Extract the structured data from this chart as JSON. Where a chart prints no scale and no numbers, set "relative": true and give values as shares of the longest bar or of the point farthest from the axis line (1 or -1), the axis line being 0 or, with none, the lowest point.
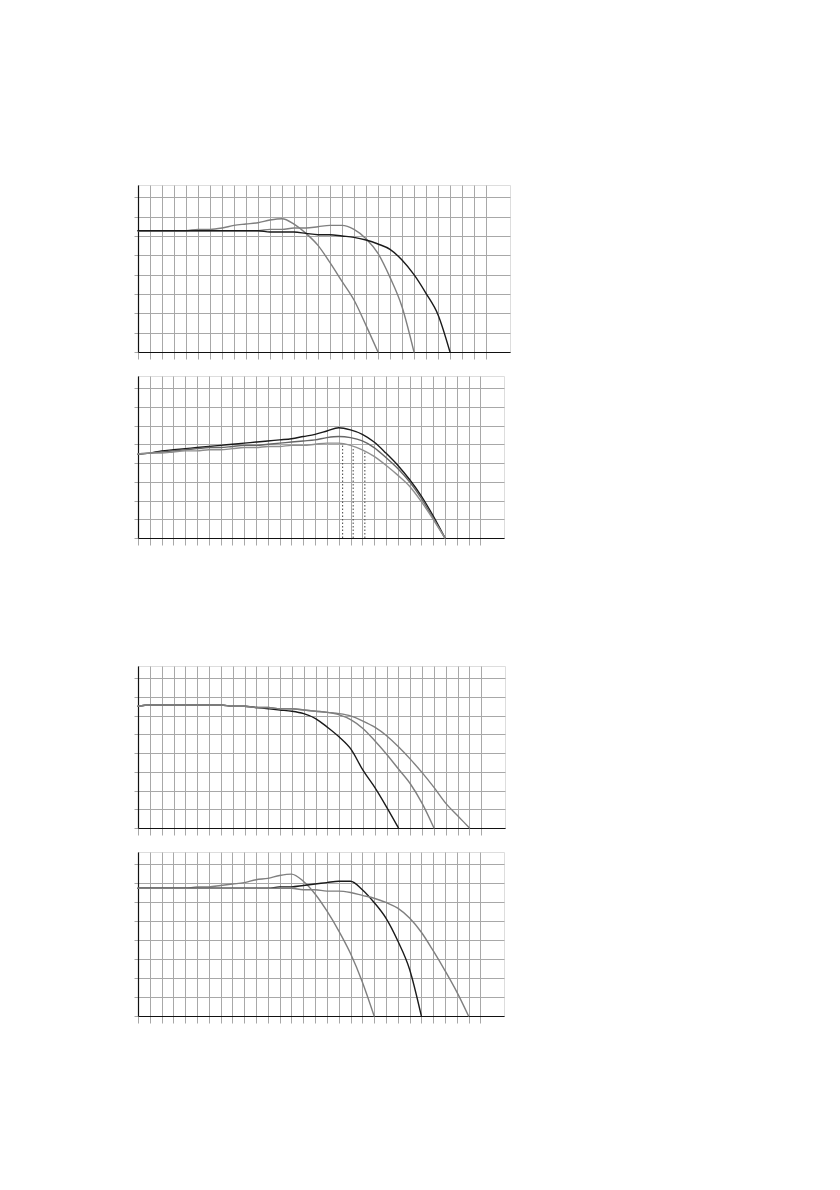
{
  "chart_data": [
    {
      "type": "line",
      "relative": true,
      "grid": true,
      "tick_labels": false,
      "categories": [
        null,
        null,
        null,
        null,
        null,
        null,
        null,
        null,
        null,
        null,
        null,
        null,
        null,
        null,
        null,
        null,
        null,
        null,
        null,
        null,
        null,
        null,
        null,
        null,
        null,
        null,
        null,
        null,
        null,
        null
      ],
      "series": [
        {
          "color": "#7f7f7f",
          "values": [
            0.91,
            0.91,
            0.91,
            0.91,
            0.91,
            0.92,
            0.92,
            0.93,
            0.95,
            0.96,
            0.97,
            0.99,
            1.0,
            0.96,
            0.89,
            0.8,
            0.67,
            0.53,
            0.39,
            0.2,
            0,
            null,
            null,
            null,
            null,
            null,
            null,
            null,
            null,
            null
          ]
        },
        {
          "color": "#7f7f7f",
          "values": [
            0.91,
            0.91,
            0.91,
            0.91,
            0.91,
            0.91,
            0.91,
            0.91,
            0.91,
            0.91,
            0.91,
            0.92,
            0.92,
            0.93,
            0.93,
            0.94,
            0.95,
            0.95,
            0.92,
            0.85,
            0.74,
            0.56,
            0.34,
            0,
            null,
            null,
            null,
            null,
            null,
            null
          ]
        },
        {
          "color": "#1a1a1a",
          "values": [
            0.91,
            0.91,
            0.91,
            0.91,
            0.91,
            0.91,
            0.91,
            0.91,
            0.91,
            0.91,
            0.91,
            0.9,
            0.9,
            0.9,
            0.89,
            0.88,
            0.88,
            0.87,
            0.86,
            0.84,
            0.81,
            0.77,
            0.69,
            0.58,
            0.44,
            0.28,
            0,
            null,
            null,
            null
          ]
        }
      ]
    },
    {
      "type": "line",
      "relative": true,
      "grid": true,
      "tick_labels": false,
      "categories": [
        null,
        null,
        null,
        null,
        null,
        null,
        null,
        null,
        null,
        null,
        null,
        null,
        null,
        null,
        null,
        null,
        null,
        null,
        null,
        null,
        null,
        null,
        null,
        null,
        null,
        null,
        null,
        null,
        null,
        null
      ],
      "series": [
        {
          "color": "#1a1a1a",
          "values": [
            0.76,
            0.77,
            0.79,
            0.8,
            0.81,
            0.82,
            0.83,
            0.84,
            0.85,
            0.86,
            0.87,
            0.88,
            0.89,
            0.9,
            0.92,
            0.94,
            0.97,
            1.0,
            0.98,
            0.94,
            0.87,
            0.77,
            0.66,
            0.53,
            0.38,
            0.2,
            0,
            null,
            null,
            null
          ]
        },
        {
          "color": "#666666",
          "values": [
            0.76,
            0.77,
            0.78,
            0.79,
            0.8,
            0.81,
            0.82,
            0.82,
            0.83,
            0.84,
            0.84,
            0.85,
            0.86,
            0.87,
            0.88,
            0.89,
            0.91,
            0.92,
            0.91,
            0.88,
            0.82,
            0.73,
            0.63,
            0.51,
            0.36,
            0.18,
            0,
            null,
            null,
            null
          ]
        },
        {
          "color": "#8f8f8f",
          "values": [
            0.76,
            0.77,
            0.77,
            0.78,
            0.79,
            0.79,
            0.8,
            0.8,
            0.81,
            0.82,
            0.82,
            0.83,
            0.83,
            0.84,
            0.84,
            0.85,
            0.86,
            0.86,
            0.84,
            0.8,
            0.74,
            0.66,
            0.57,
            0.47,
            0.33,
            0.17,
            0,
            null,
            null,
            null
          ]
        }
      ]
    },
    {
      "type": "line",
      "relative": true,
      "grid": true,
      "tick_labels": false,
      "categories": [
        null,
        null,
        null,
        null,
        null,
        null,
        null,
        null,
        null,
        null,
        null,
        null,
        null,
        null,
        null,
        null,
        null,
        null,
        null,
        null,
        null,
        null,
        null,
        null,
        null,
        null,
        null,
        null,
        null,
        null
      ],
      "series": [
        {
          "color": "#1a1a1a",
          "values": [
            0.99,
            1.0,
            1.0,
            1.0,
            1.0,
            1.0,
            1.0,
            1.0,
            0.99,
            0.99,
            0.98,
            0.97,
            0.96,
            0.95,
            0.93,
            0.89,
            0.82,
            0.74,
            0.64,
            0.47,
            0.33,
            0.17,
            0,
            null,
            null,
            null,
            null,
            null,
            null,
            null
          ]
        },
        {
          "color": "#7f7f7f",
          "values": [
            0.99,
            1.0,
            1.0,
            1.0,
            1.0,
            1.0,
            1.0,
            1.0,
            0.99,
            0.99,
            0.98,
            0.98,
            0.97,
            0.97,
            0.96,
            0.95,
            0.94,
            0.92,
            0.88,
            0.81,
            0.71,
            0.6,
            0.48,
            0.36,
            0.2,
            0,
            null,
            null,
            null,
            null
          ]
        },
        {
          "color": "#7f7f7f",
          "values": [
            0.99,
            1.0,
            1.0,
            1.0,
            1.0,
            1.0,
            1.0,
            1.0,
            0.99,
            0.99,
            0.98,
            0.98,
            0.97,
            0.97,
            0.96,
            0.95,
            0.94,
            0.93,
            0.91,
            0.87,
            0.82,
            0.75,
            0.66,
            0.56,
            0.45,
            0.33,
            0.2,
            0.1,
            0,
            null
          ]
        }
      ]
    },
    {
      "type": "line",
      "relative": true,
      "grid": true,
      "tick_labels": false,
      "categories": [
        null,
        null,
        null,
        null,
        null,
        null,
        null,
        null,
        null,
        null,
        null,
        null,
        null,
        null,
        null,
        null,
        null,
        null,
        null,
        null,
        null,
        null,
        null,
        null,
        null,
        null,
        null,
        null,
        null,
        null
      ],
      "series": [
        {
          "color": "#7f7f7f",
          "values": [
            0.9,
            0.9,
            0.9,
            0.9,
            0.9,
            0.91,
            0.91,
            0.92,
            0.93,
            0.94,
            0.96,
            0.97,
            0.99,
            1.0,
            0.95,
            0.86,
            0.74,
            0.6,
            0.44,
            0.24,
            0,
            null,
            null,
            null,
            null,
            null,
            null,
            null,
            null,
            null
          ]
        },
        {
          "color": "#1a1a1a",
          "values": [
            0.9,
            0.9,
            0.9,
            0.9,
            0.9,
            0.9,
            0.9,
            0.9,
            0.9,
            0.9,
            0.9,
            0.9,
            0.91,
            0.91,
            0.92,
            0.93,
            0.94,
            0.95,
            0.95,
            0.89,
            0.8,
            0.69,
            0.53,
            0.33,
            0,
            null,
            null,
            null,
            null,
            null
          ]
        },
        {
          "color": "#7f7f7f",
          "values": [
            0.9,
            0.9,
            0.9,
            0.9,
            0.9,
            0.9,
            0.9,
            0.9,
            0.9,
            0.9,
            0.9,
            0.9,
            0.9,
            0.9,
            0.89,
            0.89,
            0.88,
            0.88,
            0.87,
            0.85,
            0.83,
            0.8,
            0.76,
            0.69,
            0.59,
            0.46,
            0.32,
            0.17,
            0,
            null
          ]
        }
      ]
    }
  ]
}
